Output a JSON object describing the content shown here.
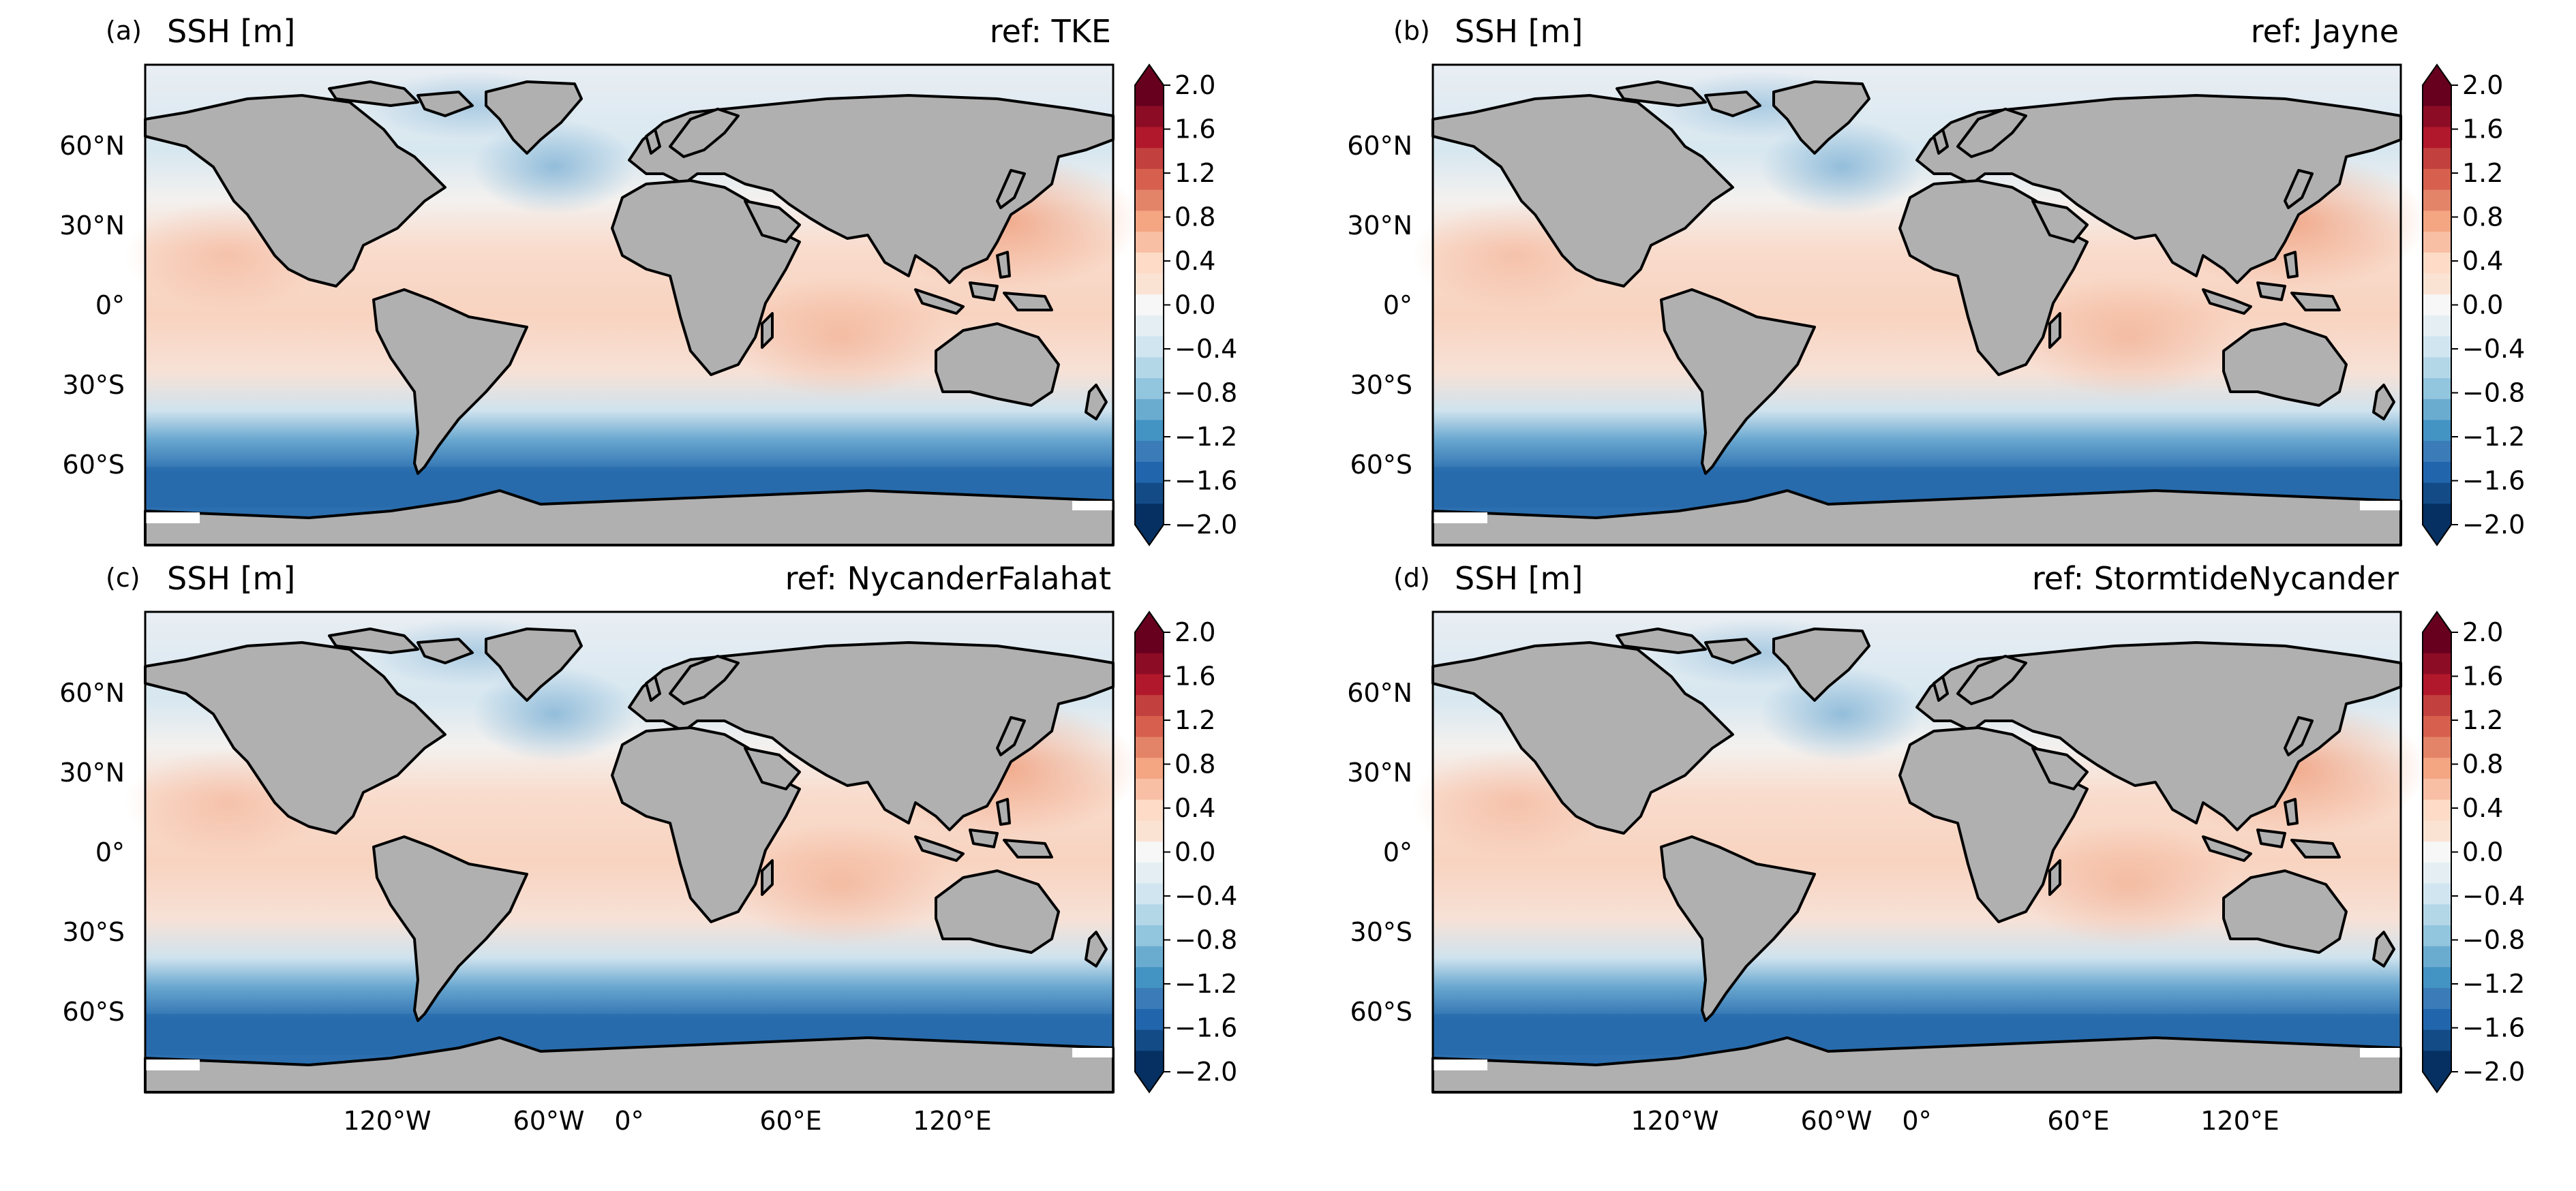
{
  "panels": [
    {
      "letter": "(a)",
      "title_left": "SSH [m]",
      "title_right": "ref: TKE"
    },
    {
      "letter": "(b)",
      "title_left": "SSH [m]",
      "title_right": "ref: Jayne"
    },
    {
      "letter": "(c)",
      "title_left": "SSH [m]",
      "title_right": "ref: NycanderFalahat"
    },
    {
      "letter": "(d)",
      "title_left": "SSH [m]",
      "title_right": "ref: StormtideNycander"
    }
  ],
  "lat_ticks": [
    "60°N",
    "30°N",
    "0°",
    "30°S",
    "60°S"
  ],
  "lon_ticks": [
    "120°W",
    "60°W",
    "0°",
    "60°E",
    "120°E"
  ],
  "colorbar": {
    "min": -2.0,
    "max": 2.0,
    "step": 0.2,
    "extend": "both",
    "tick_labels": [
      "2.0",
      "1.6",
      "1.2",
      "0.8",
      "0.4",
      "0.0",
      "−0.4",
      "−0.8",
      "−1.2",
      "−1.6",
      "−2.0"
    ],
    "colors": [
      "#053061",
      "#134b87",
      "#2166ac",
      "#3a7bb8",
      "#4393c3",
      "#6aacd0",
      "#92c5de",
      "#b4d7e8",
      "#d1e5f0",
      "#e5eef3",
      "#f7f7f7",
      "#fbe3d4",
      "#fddbc7",
      "#f8bfa4",
      "#f4a582",
      "#e38469",
      "#d6604d",
      "#c2403e",
      "#b2182b",
      "#8d0c25",
      "#67001f"
    ]
  },
  "colors": {
    "land": "#b0b0b0",
    "coastline": "#000000"
  },
  "chart_data": {
    "type": "heatmap",
    "variable": "SSH [m]",
    "projection": "PlateCarree",
    "lon_range": [
      -180,
      180
    ],
    "lat_range": [
      -90,
      90
    ],
    "color_range": [
      -2.0,
      2.0
    ],
    "colormap": "RdBu_r",
    "panels": [
      "ref: TKE",
      "ref: Jayne",
      "ref: NycanderFalahat",
      "ref: StormtideNycander"
    ]
  }
}
